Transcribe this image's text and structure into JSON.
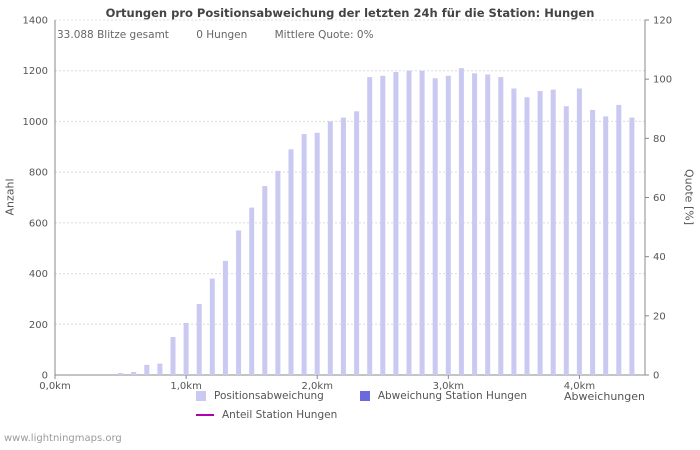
{
  "title": "Ortungen pro Positionsabweichung der letzten 24h für die Station: Hungen",
  "stats": {
    "total": "33.088 Blitze gesamt",
    "station": "0 Hungen",
    "quote": "Mittlere Quote: 0%"
  },
  "watermark": "www.lightningmaps.org",
  "legend": [
    {
      "label": "Positionsabweichung",
      "type": "swatch",
      "color": "#c9c9f1"
    },
    {
      "label": "Abweichung Station Hungen",
      "type": "swatch",
      "color": "#6a6ade"
    },
    {
      "label": "Anteil Station Hungen",
      "type": "line",
      "color": "#b000b0"
    }
  ],
  "chart_data": {
    "type": "bar",
    "title": "Ortungen pro Positionsabweichung der letzten 24h für die Station: Hungen",
    "xlabel": "Abweichungen",
    "ylabel_left": "Anzahl",
    "ylabel_right": "Quote [%]",
    "xlim_km": [
      0,
      4.5
    ],
    "ylim_left": [
      0,
      1400
    ],
    "ylim_right": [
      0,
      120
    ],
    "ytick_step_left": 200,
    "ytick_step_right": 20,
    "xtick_km": [
      0,
      1,
      2,
      3,
      4
    ],
    "xtick_labels": [
      "0,0km",
      "1,0km",
      "2,0km",
      "3,0km",
      "4,0km"
    ],
    "bar_color": "#c9c9f1",
    "station_bar_color": "#6a6ade",
    "quote_line_color": "#b000b0",
    "grid": true,
    "legend_position": "bottom",
    "x_km": [
      0.1,
      0.2,
      0.3,
      0.4,
      0.5,
      0.6,
      0.7,
      0.8,
      0.9,
      1.0,
      1.1,
      1.2,
      1.3,
      1.4,
      1.5,
      1.6,
      1.7,
      1.8,
      1.9,
      2.0,
      2.1,
      2.2,
      2.3,
      2.4,
      2.5,
      2.6,
      2.7,
      2.8,
      2.9,
      3.0,
      3.1,
      3.2,
      3.3,
      3.4,
      3.5,
      3.6,
      3.7,
      3.8,
      3.9,
      4.0,
      4.1,
      4.2,
      4.3,
      4.4
    ],
    "values": [
      0,
      0,
      0,
      0,
      8,
      12,
      40,
      45,
      150,
      205,
      280,
      380,
      450,
      570,
      660,
      745,
      805,
      890,
      950,
      955,
      1000,
      1015,
      1040,
      1175,
      1180,
      1195,
      1200,
      1200,
      1170,
      1180,
      1210,
      1190,
      1185,
      1175,
      1130,
      1095,
      1120,
      1125,
      1060,
      1130,
      1045,
      1020,
      1065,
      1015
    ],
    "station_values_all_zero": true,
    "mean_quote_percent": 0
  }
}
